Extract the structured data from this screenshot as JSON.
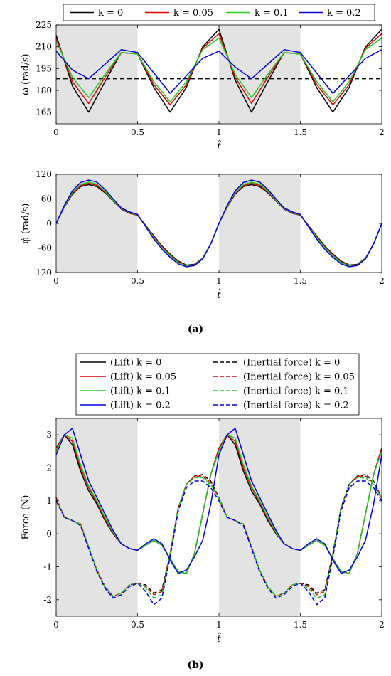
{
  "sublabels": {
    "a": "(a)",
    "b": "(b)"
  },
  "colors": {
    "k0": "#000000",
    "k005": "#e00000",
    "k01": "#22cc22",
    "k02": "#0000dd",
    "shade": "#e3e3e3",
    "ref": "#000000"
  },
  "chart_data": [
    {
      "type": "line",
      "xlabel": "t̂",
      "ylabel": "ω (rad/s)",
      "xlim": [
        0,
        2
      ],
      "ylim": [
        157,
        225
      ],
      "xticks": [
        "0",
        "0.5",
        "1",
        "1.5",
        "2"
      ],
      "yticks": [
        "165",
        "180",
        "195",
        "210",
        "225"
      ],
      "ytick_values": [
        165,
        180,
        195,
        210,
        225
      ],
      "shaded_x": [
        [
          0,
          0.5
        ],
        [
          1,
          1.5
        ]
      ],
      "reference_line": {
        "y": 188,
        "style": "dashed"
      },
      "legend": {
        "placement": "top",
        "labels": [
          "k = 0",
          "k = 0.05",
          "k = 0.1",
          "k = 0.2"
        ]
      },
      "x": [
        0,
        0.1,
        0.2,
        0.3,
        0.4,
        0.5,
        0.6,
        0.7,
        0.8,
        0.9,
        1.0,
        1.1,
        1.2,
        1.3,
        1.4,
        1.5,
        1.6,
        1.7,
        1.8,
        1.9,
        2.0
      ],
      "series": [
        {
          "name": "k = 0",
          "values": [
            218,
            183,
            165,
            186,
            206,
            205,
            182,
            165,
            182,
            210,
            222,
            187,
            165,
            186,
            206,
            205,
            182,
            165,
            182,
            210,
            222
          ]
        },
        {
          "name": "k = 0.05",
          "values": [
            216,
            186,
            171,
            189,
            206,
            205,
            184,
            170,
            184,
            209,
            219,
            189,
            171,
            189,
            206,
            205,
            184,
            170,
            184,
            209,
            219
          ]
        },
        {
          "name": "k = 0.1",
          "values": [
            214,
            189,
            175,
            191,
            206,
            205,
            186,
            172,
            186,
            208,
            216,
            191,
            175,
            191,
            206,
            205,
            186,
            172,
            186,
            208,
            216
          ]
        },
        {
          "name": "k = 0.2",
          "values": [
            207,
            194,
            188,
            198,
            208,
            206,
            192,
            178,
            190,
            202,
            207,
            196,
            188,
            198,
            208,
            206,
            192,
            178,
            190,
            202,
            208
          ]
        }
      ]
    },
    {
      "type": "line",
      "xlabel": "t̂",
      "ylabel": "φ̇ (rad/s)",
      "xlim": [
        0,
        2
      ],
      "ylim": [
        -120,
        120
      ],
      "xticks": [
        "0",
        "0.5",
        "1",
        "1.5",
        "2"
      ],
      "yticks": [
        "-120",
        "-60",
        "0",
        "60",
        "120"
      ],
      "ytick_values": [
        -120,
        -60,
        0,
        60,
        120
      ],
      "shaded_x": [
        [
          0,
          0.5
        ],
        [
          1,
          1.5
        ]
      ],
      "x": [
        0,
        0.05,
        0.1,
        0.15,
        0.2,
        0.25,
        0.3,
        0.35,
        0.4,
        0.45,
        0.5,
        0.55,
        0.6,
        0.65,
        0.7,
        0.75,
        0.8,
        0.85,
        0.9,
        0.95,
        1.0,
        1.05,
        1.1,
        1.15,
        1.2,
        1.25,
        1.3,
        1.35,
        1.4,
        1.45,
        1.5,
        1.55,
        1.6,
        1.65,
        1.7,
        1.75,
        1.8,
        1.85,
        1.9,
        1.95,
        2.0
      ],
      "series": [
        {
          "name": "k = 0",
          "values": [
            0,
            40,
            72,
            90,
            95,
            90,
            75,
            55,
            35,
            25,
            20,
            -5,
            -30,
            -55,
            -75,
            -92,
            -102,
            -100,
            -85,
            -50,
            0,
            40,
            72,
            90,
            95,
            90,
            75,
            55,
            35,
            25,
            20,
            -5,
            -30,
            -55,
            -75,
            -92,
            -102,
            -100,
            -85,
            -50,
            0
          ]
        },
        {
          "name": "k = 0.05",
          "values": [
            0,
            41,
            74,
            92,
            98,
            93,
            77,
            56,
            36,
            26,
            20,
            -6,
            -32,
            -57,
            -77,
            -94,
            -103,
            -101,
            -86,
            -50,
            0,
            41,
            74,
            92,
            98,
            93,
            77,
            56,
            36,
            26,
            20,
            -6,
            -32,
            -57,
            -77,
            -94,
            -103,
            -101,
            -86,
            -50,
            0
          ]
        },
        {
          "name": "k = 0.1",
          "values": [
            0,
            42,
            76,
            95,
            101,
            96,
            79,
            57,
            37,
            27,
            21,
            -7,
            -34,
            -59,
            -79,
            -96,
            -104,
            -102,
            -86,
            -50,
            0,
            42,
            76,
            95,
            101,
            96,
            79,
            57,
            37,
            27,
            21,
            -7,
            -34,
            -59,
            -79,
            -96,
            -104,
            -102,
            -86,
            -50,
            0
          ]
        },
        {
          "name": "k = 0.2",
          "values": [
            0,
            44,
            80,
            100,
            106,
            101,
            83,
            60,
            38,
            28,
            22,
            -8,
            -38,
            -63,
            -83,
            -99,
            -106,
            -103,
            -87,
            -50,
            0,
            44,
            80,
            100,
            106,
            101,
            83,
            60,
            38,
            28,
            22,
            -8,
            -38,
            -63,
            -83,
            -99,
            -106,
            -103,
            -87,
            -50,
            0
          ]
        }
      ]
    },
    {
      "type": "line",
      "xlabel": "t̂",
      "ylabel": "Force (N)",
      "xlim": [
        0,
        2
      ],
      "ylim": [
        -2.5,
        3.5
      ],
      "xticks": [
        "0",
        "0.5",
        "1",
        "1.5",
        "2"
      ],
      "yticks": [
        "-2",
        "-1",
        "0",
        "1",
        "2",
        "3"
      ],
      "ytick_values": [
        -2,
        -1,
        0,
        1,
        2,
        3
      ],
      "shaded_x": [
        [
          0,
          0.5
        ],
        [
          1,
          1.5
        ]
      ],
      "legend": {
        "placement": "top",
        "labels": [
          "(Lift) k = 0",
          "(Inertial force) k = 0",
          "(Lift) k = 0.05",
          "(Inertial force) k = 0.05",
          "(Lift) k = 0.1",
          "(Inertial force) k = 0.1",
          "(Lift) k = 0.2",
          "(Inertial force) k = 0.2"
        ]
      },
      "x": [
        0,
        0.05,
        0.1,
        0.15,
        0.2,
        0.25,
        0.3,
        0.35,
        0.4,
        0.45,
        0.5,
        0.55,
        0.6,
        0.65,
        0.7,
        0.75,
        0.8,
        0.85,
        0.9,
        0.95,
        1.0,
        1.05,
        1.1,
        1.15,
        1.2,
        1.25,
        1.3,
        1.35,
        1.4,
        1.45,
        1.5,
        1.55,
        1.6,
        1.65,
        1.7,
        1.75,
        1.8,
        1.85,
        1.9,
        1.95,
        2.0
      ],
      "series": [
        {
          "name": "(Lift) k = 0",
          "style": "solid",
          "values": [
            2.6,
            3.0,
            2.7,
            1.9,
            1.3,
            0.9,
            0.4,
            0.0,
            -0.3,
            -0.45,
            -0.5,
            -0.35,
            -0.2,
            -0.35,
            -0.75,
            -1.15,
            -1.2,
            -0.6,
            0.6,
            1.8,
            2.6,
            3.0,
            2.7,
            1.9,
            1.3,
            0.9,
            0.4,
            0.0,
            -0.3,
            -0.45,
            -0.5,
            -0.35,
            -0.2,
            -0.35,
            -0.75,
            -1.15,
            -1.2,
            -0.6,
            0.6,
            1.8,
            2.6
          ]
        },
        {
          "name": "(Inertial force) k = 0",
          "style": "dashed",
          "values": [
            1.1,
            0.5,
            0.4,
            0.3,
            -0.4,
            -1.1,
            -1.6,
            -1.9,
            -1.8,
            -1.55,
            -1.5,
            -1.55,
            -1.8,
            -1.7,
            -0.6,
            0.8,
            1.5,
            1.75,
            1.8,
            1.6,
            1.1,
            0.5,
            0.4,
            0.3,
            -0.4,
            -1.1,
            -1.6,
            -1.9,
            -1.8,
            -1.55,
            -1.5,
            -1.55,
            -1.8,
            -1.7,
            -0.6,
            0.8,
            1.5,
            1.75,
            1.8,
            1.6,
            1.1
          ]
        },
        {
          "name": "(Lift) k = 0.05",
          "style": "solid",
          "values": [
            2.6,
            3.0,
            2.8,
            2.0,
            1.4,
            0.95,
            0.45,
            0.02,
            -0.3,
            -0.45,
            -0.5,
            -0.35,
            -0.2,
            -0.35,
            -0.75,
            -1.15,
            -1.2,
            -0.6,
            0.6,
            1.8,
            2.6,
            3.0,
            2.8,
            2.0,
            1.4,
            0.95,
            0.45,
            0.02,
            -0.3,
            -0.45,
            -0.5,
            -0.35,
            -0.2,
            -0.35,
            -0.75,
            -1.15,
            -1.2,
            -0.6,
            0.6,
            1.8,
            2.6
          ]
        },
        {
          "name": "(Inertial force) k = 0.05",
          "style": "dashed",
          "values": [
            1.1,
            0.5,
            0.4,
            0.3,
            -0.4,
            -1.1,
            -1.6,
            -1.9,
            -1.8,
            -1.55,
            -1.5,
            -1.6,
            -1.85,
            -1.75,
            -0.6,
            0.8,
            1.5,
            1.75,
            1.75,
            1.55,
            1.1,
            0.5,
            0.4,
            0.3,
            -0.4,
            -1.1,
            -1.6,
            -1.9,
            -1.8,
            -1.55,
            -1.5,
            -1.6,
            -1.85,
            -1.75,
            -0.6,
            0.8,
            1.5,
            1.75,
            1.75,
            1.55,
            1.1
          ]
        },
        {
          "name": "(Lift) k = 0.1",
          "style": "solid",
          "values": [
            2.5,
            3.0,
            2.9,
            2.1,
            1.45,
            1.0,
            0.5,
            0.05,
            -0.3,
            -0.45,
            -0.5,
            -0.35,
            -0.2,
            -0.35,
            -0.75,
            -1.15,
            -1.2,
            -0.6,
            0.6,
            1.8,
            2.5,
            3.0,
            2.9,
            2.1,
            1.45,
            1.0,
            0.5,
            0.05,
            -0.3,
            -0.45,
            -0.5,
            -0.35,
            -0.2,
            -0.35,
            -0.75,
            -1.15,
            -1.2,
            -0.6,
            0.6,
            1.8,
            2.5
          ]
        },
        {
          "name": "(Inertial force) k = 0.1",
          "style": "dashed",
          "values": [
            1.05,
            0.5,
            0.4,
            0.3,
            -0.4,
            -1.1,
            -1.6,
            -1.9,
            -1.8,
            -1.55,
            -1.5,
            -1.65,
            -1.95,
            -1.85,
            -0.6,
            0.8,
            1.5,
            1.7,
            1.7,
            1.5,
            1.05,
            0.5,
            0.4,
            0.3,
            -0.4,
            -1.1,
            -1.6,
            -1.9,
            -1.8,
            -1.55,
            -1.5,
            -1.65,
            -1.95,
            -1.85,
            -0.6,
            0.8,
            1.5,
            1.7,
            1.7,
            1.5,
            1.05
          ]
        },
        {
          "name": "(Lift) k = 0.2",
          "style": "solid",
          "values": [
            2.4,
            3.0,
            3.2,
            2.4,
            1.6,
            1.1,
            0.6,
            0.1,
            -0.3,
            -0.45,
            -0.5,
            -0.3,
            -0.15,
            -0.3,
            -0.8,
            -1.2,
            -1.1,
            -0.7,
            -0.2,
            0.9,
            2.4,
            3.0,
            3.2,
            2.4,
            1.6,
            1.1,
            0.6,
            0.1,
            -0.3,
            -0.45,
            -0.5,
            -0.3,
            -0.15,
            -0.3,
            -0.8,
            -1.2,
            -1.1,
            -0.7,
            -0.2,
            0.9,
            2.4
          ]
        },
        {
          "name": "(Inertial force) k = 0.2",
          "style": "dashed",
          "values": [
            1.0,
            0.5,
            0.4,
            0.25,
            -0.45,
            -1.15,
            -1.65,
            -1.95,
            -1.85,
            -1.6,
            -1.5,
            -1.75,
            -2.15,
            -1.95,
            -0.7,
            0.7,
            1.4,
            1.6,
            1.6,
            1.4,
            1.0,
            0.5,
            0.4,
            0.25,
            -0.45,
            -1.15,
            -1.65,
            -1.95,
            -1.85,
            -1.6,
            -1.5,
            -1.75,
            -2.15,
            -1.95,
            -0.7,
            0.7,
            1.4,
            1.6,
            1.6,
            1.4,
            1.0
          ]
        }
      ]
    }
  ]
}
